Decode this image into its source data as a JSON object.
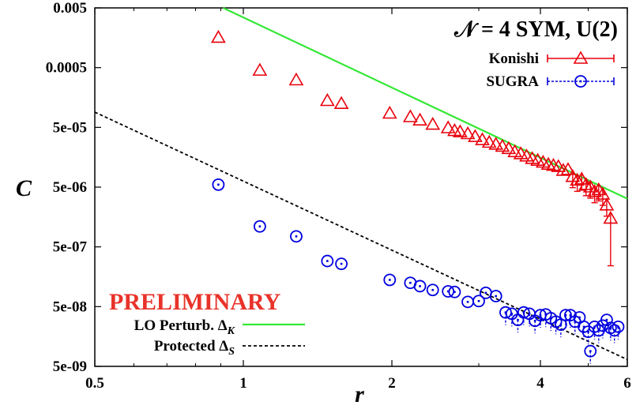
{
  "chart_data": {
    "type": "scatter",
    "title": "𝒩 = 4 SYM, U(2)",
    "xlabel": "r",
    "ylabel": "C",
    "x_scale": "log",
    "y_scale": "log",
    "xlim": [
      0.5,
      6
    ],
    "ylim": [
      5e-09,
      0.005
    ],
    "x_ticks": [
      "0.5",
      "1",
      "2",
      "4",
      "6"
    ],
    "x_tick_values": [
      0.5,
      1,
      2,
      4,
      6
    ],
    "y_ticks": [
      "5e-09",
      "5e-08",
      "5e-07",
      "5e-06",
      "5e-05",
      "0.0005",
      "0.005"
    ],
    "y_tick_values": [
      5e-09,
      5e-08,
      5e-07,
      5e-06,
      5e-05,
      0.0005,
      0.005
    ],
    "annotation": "PRELIMINARY",
    "colors": {
      "konishi": "#e8000b",
      "sugra": "#0000e0",
      "lo": "#33e833",
      "protected": "#000000",
      "preliminary": "#e8332a"
    },
    "series": [
      {
        "name": "Konishi",
        "marker": "triangle",
        "color": "#e8000b",
        "points": [
          {
            "x": 0.89,
            "y": 0.0016
          },
          {
            "x": 1.08,
            "y": 0.00045
          },
          {
            "x": 1.28,
            "y": 0.00031
          },
          {
            "x": 1.48,
            "y": 0.00014
          },
          {
            "x": 1.58,
            "y": 0.000125
          },
          {
            "x": 1.98,
            "y": 8.6e-05
          },
          {
            "x": 2.18,
            "y": 7.5e-05
          },
          {
            "x": 2.28,
            "y": 6.6e-05
          },
          {
            "x": 2.42,
            "y": 5.6e-05
          },
          {
            "x": 2.6,
            "y": 4.9e-05
          },
          {
            "x": 2.68,
            "y": 4.4e-05
          },
          {
            "x": 2.75,
            "y": 4.2e-05
          },
          {
            "x": 2.85,
            "y": 3.9e-05
          },
          {
            "x": 2.95,
            "y": 3.5e-05
          },
          {
            "x": 3.05,
            "y": 3.1e-05
          },
          {
            "x": 3.15,
            "y": 2.8e-05
          },
          {
            "x": 3.25,
            "y": 2.6e-05
          },
          {
            "x": 3.35,
            "y": 2.4e-05
          },
          {
            "x": 3.45,
            "y": 2.2e-05
          },
          {
            "x": 3.55,
            "y": 1.95e-05
          },
          {
            "x": 3.65,
            "y": 1.8e-05
          },
          {
            "x": 3.75,
            "y": 1.65e-05
          },
          {
            "x": 3.85,
            "y": 1.5e-05
          },
          {
            "x": 3.95,
            "y": 1.4e-05
          },
          {
            "x": 4.05,
            "y": 1.3e-05
          },
          {
            "x": 4.15,
            "y": 1.2e-05
          },
          {
            "x": 4.25,
            "y": 1.15e-05
          },
          {
            "x": 4.35,
            "y": 1.1e-05
          },
          {
            "x": 4.45,
            "y": 9.5e-06
          },
          {
            "x": 4.55,
            "y": 9.8e-06
          },
          {
            "x": 4.65,
            "y": 7.5e-06
          },
          {
            "x": 4.75,
            "y": 6.5e-06
          },
          {
            "x": 4.85,
            "y": 6.8e-06
          },
          {
            "x": 4.95,
            "y": 5.5e-06
          },
          {
            "x": 5.05,
            "y": 5e-06
          },
          {
            "x": 5.15,
            "y": 4.2e-06
          },
          {
            "x": 5.25,
            "y": 4.5e-06
          },
          {
            "x": 5.35,
            "y": 3.8e-06
          },
          {
            "x": 5.45,
            "y": 2.5e-06
          },
          {
            "x": 5.55,
            "y": 1.5e-06
          }
        ]
      },
      {
        "name": "SUGRA",
        "marker": "circle",
        "color": "#0000e0",
        "points": [
          {
            "x": 0.89,
            "y": 5.5e-06
          },
          {
            "x": 1.08,
            "y": 1.1e-06
          },
          {
            "x": 1.28,
            "y": 7.5e-07
          },
          {
            "x": 1.48,
            "y": 2.9e-07
          },
          {
            "x": 1.58,
            "y": 2.6e-07
          },
          {
            "x": 1.98,
            "y": 1.4e-07
          },
          {
            "x": 2.18,
            "y": 1.25e-07
          },
          {
            "x": 2.28,
            "y": 1.1e-07
          },
          {
            "x": 2.42,
            "y": 9.5e-08
          },
          {
            "x": 2.6,
            "y": 9e-08
          },
          {
            "x": 2.68,
            "y": 8.8e-08
          },
          {
            "x": 2.85,
            "y": 6e-08
          },
          {
            "x": 3.0,
            "y": 6.2e-08
          },
          {
            "x": 3.1,
            "y": 8.5e-08
          },
          {
            "x": 3.25,
            "y": 7.5e-08
          },
          {
            "x": 3.4,
            "y": 4e-08
          },
          {
            "x": 3.5,
            "y": 3.8e-08
          },
          {
            "x": 3.6,
            "y": 3e-08
          },
          {
            "x": 3.7,
            "y": 4e-08
          },
          {
            "x": 3.8,
            "y": 3.8e-08
          },
          {
            "x": 3.9,
            "y": 2.9e-08
          },
          {
            "x": 4.0,
            "y": 3.6e-08
          },
          {
            "x": 4.1,
            "y": 3.7e-08
          },
          {
            "x": 4.2,
            "y": 3.2e-08
          },
          {
            "x": 4.3,
            "y": 2.8e-08
          },
          {
            "x": 4.4,
            "y": 2.5e-08
          },
          {
            "x": 4.5,
            "y": 3.6e-08
          },
          {
            "x": 4.6,
            "y": 3.6e-08
          },
          {
            "x": 4.7,
            "y": 2.8e-08
          },
          {
            "x": 4.8,
            "y": 3.3e-08
          },
          {
            "x": 4.9,
            "y": 2.3e-08
          },
          {
            "x": 5.0,
            "y": 1.9e-08
          },
          {
            "x": 5.05,
            "y": 9e-09
          },
          {
            "x": 5.15,
            "y": 2.3e-08
          },
          {
            "x": 5.25,
            "y": 2e-08
          },
          {
            "x": 5.35,
            "y": 2.4e-08
          },
          {
            "x": 5.45,
            "y": 3e-08
          },
          {
            "x": 5.55,
            "y": 2.2e-08
          },
          {
            "x": 5.65,
            "y": 2e-08
          },
          {
            "x": 5.75,
            "y": 2.3e-08
          }
        ]
      }
    ],
    "lines": [
      {
        "name": "LO Perturb. Δ_K",
        "style": "solid",
        "color": "#33e833",
        "points": [
          {
            "x": 0.91,
            "y": 0.005
          },
          {
            "x": 6,
            "y": 3.2e-06
          }
        ]
      },
      {
        "name": "Protected Δ_S",
        "style": "dashed",
        "color": "#000000",
        "points": [
          {
            "x": 0.5,
            "y": 9e-05
          },
          {
            "x": 6,
            "y": 6.5e-09
          }
        ]
      }
    ],
    "legend": [
      {
        "label": "Konishi",
        "position": "top-right"
      },
      {
        "label": "SUGRA",
        "position": "top-right"
      },
      {
        "label_main": "LO Perturb. Δ",
        "label_sub": "K",
        "position": "bottom-left"
      },
      {
        "label_main": "Protected Δ",
        "label_sub": "S",
        "position": "bottom-left"
      }
    ]
  }
}
